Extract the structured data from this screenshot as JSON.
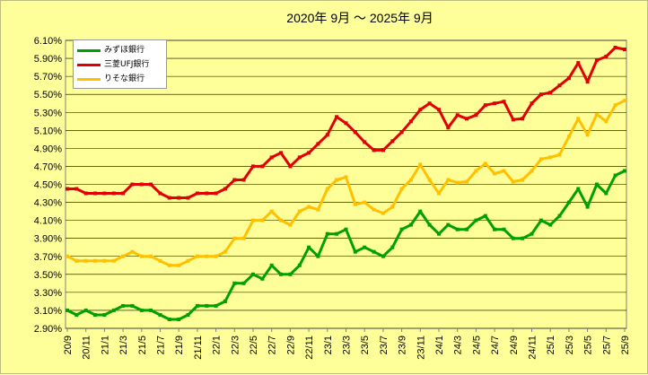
{
  "chart_data": {
    "type": "line",
    "title": "2020年  9月  ～  2025年  9月",
    "y_ticks": [
      "2.90%",
      "3.10%",
      "3.30%",
      "3.50%",
      "3.70%",
      "3.90%",
      "4.10%",
      "4.30%",
      "4.50%",
      "4.70%",
      "4.90%",
      "5.10%",
      "5.30%",
      "5.50%",
      "5.70%",
      "5.90%",
      "6.10%"
    ],
    "ylim": [
      2.9,
      6.1
    ],
    "grid": true,
    "legend_position": "top-left",
    "x": [
      "20/9",
      "20/10",
      "20/11",
      "20/12",
      "21/1",
      "21/2",
      "21/3",
      "21/4",
      "21/5",
      "21/6",
      "21/7",
      "21/8",
      "21/9",
      "21/10",
      "21/11",
      "21/12",
      "22/1",
      "22/2",
      "22/3",
      "22/4",
      "22/5",
      "22/6",
      "22/7",
      "22/8",
      "22/9",
      "22/10",
      "22/11",
      "22/12",
      "23/1",
      "23/2",
      "23/3",
      "23/4",
      "23/5",
      "23/6",
      "23/7",
      "23/8",
      "23/9",
      "23/10",
      "23/11",
      "23/12",
      "24/1",
      "24/2",
      "24/3",
      "24/4",
      "24/5",
      "24/6",
      "24/7",
      "24/8",
      "24/9",
      "24/10",
      "24/11",
      "24/12",
      "25/1",
      "25/2",
      "25/3",
      "25/4",
      "25/5",
      "25/6",
      "25/7",
      "25/8",
      "25/9"
    ],
    "x_tick_labels": [
      "20/9",
      "20/11",
      "21/1",
      "21/3",
      "21/5",
      "21/7",
      "21/9",
      "21/11",
      "22/1",
      "22/3",
      "22/5",
      "22/7",
      "22/9",
      "22/11",
      "23/1",
      "23/3",
      "23/5",
      "23/7",
      "23/9",
      "23/11",
      "24/1",
      "24/3",
      "24/5",
      "24/7",
      "24/9",
      "24/11",
      "25/1",
      "25/3",
      "25/5",
      "25/7",
      "25/9"
    ],
    "series": [
      {
        "name": "みずほ銀行",
        "color": "#00a000",
        "values": [
          3.1,
          3.05,
          3.1,
          3.05,
          3.05,
          3.1,
          3.15,
          3.15,
          3.1,
          3.1,
          3.05,
          3.0,
          3.0,
          3.05,
          3.15,
          3.15,
          3.15,
          3.2,
          3.4,
          3.4,
          3.5,
          3.45,
          3.6,
          3.5,
          3.5,
          3.6,
          3.8,
          3.7,
          3.95,
          3.95,
          4.0,
          3.75,
          3.8,
          3.75,
          3.7,
          3.8,
          4.0,
          4.05,
          4.2,
          4.05,
          3.95,
          4.05,
          4.0,
          4.0,
          4.1,
          4.15,
          4.0,
          4.0,
          3.9,
          3.9,
          3.95,
          4.1,
          4.05,
          4.15,
          4.3,
          4.45,
          4.25,
          4.5,
          4.4,
          4.6,
          4.65
        ]
      },
      {
        "name": "三菱UFJ銀行",
        "color": "#e00000",
        "values": [
          4.45,
          4.45,
          4.4,
          4.4,
          4.4,
          4.4,
          4.4,
          4.5,
          4.5,
          4.5,
          4.4,
          4.35,
          4.35,
          4.35,
          4.4,
          4.4,
          4.4,
          4.45,
          4.55,
          4.55,
          4.7,
          4.7,
          4.8,
          4.85,
          4.7,
          4.8,
          4.85,
          4.95,
          5.05,
          5.25,
          5.18,
          5.08,
          4.97,
          4.88,
          4.88,
          4.98,
          5.08,
          5.2,
          5.33,
          5.4,
          5.33,
          5.13,
          5.27,
          5.23,
          5.27,
          5.38,
          5.4,
          5.42,
          5.22,
          5.23,
          5.4,
          5.5,
          5.52,
          5.6,
          5.68,
          5.85,
          5.64,
          5.88,
          5.92,
          6.02,
          6.0
        ]
      },
      {
        "name": "りそな銀行",
        "color": "#ffc000",
        "values": [
          3.7,
          3.65,
          3.65,
          3.65,
          3.65,
          3.65,
          3.7,
          3.75,
          3.7,
          3.7,
          3.65,
          3.6,
          3.6,
          3.65,
          3.7,
          3.7,
          3.7,
          3.75,
          3.9,
          3.9,
          4.1,
          4.1,
          4.2,
          4.1,
          4.05,
          4.2,
          4.25,
          4.22,
          4.45,
          4.55,
          4.58,
          4.28,
          4.3,
          4.22,
          4.18,
          4.25,
          4.45,
          4.55,
          4.72,
          4.55,
          4.4,
          4.55,
          4.52,
          4.53,
          4.65,
          4.73,
          4.62,
          4.65,
          4.53,
          4.55,
          4.65,
          4.78,
          4.8,
          4.83,
          5.03,
          5.23,
          5.05,
          5.28,
          5.2,
          5.38,
          5.43
        ]
      }
    ]
  }
}
